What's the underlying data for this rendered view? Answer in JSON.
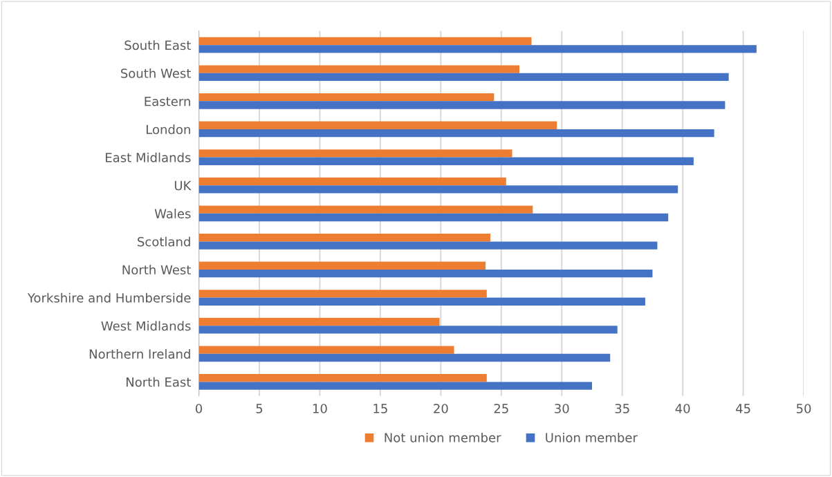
{
  "chart_data": {
    "type": "bar",
    "orientation": "horizontal",
    "categories": [
      "South East",
      "South West",
      "Eastern",
      "London",
      "East Midlands",
      "UK",
      "Wales",
      "Scotland",
      "North West",
      "Yorkshire and Humberside",
      "West Midlands",
      "Northern Ireland",
      "North East"
    ],
    "series": [
      {
        "name": "Not union member",
        "color": "#ed7d31",
        "values": [
          27.5,
          26.5,
          24.4,
          29.6,
          25.9,
          25.4,
          27.6,
          24.1,
          23.7,
          23.8,
          19.9,
          21.1,
          23.8
        ]
      },
      {
        "name": "Union member",
        "color": "#4472c4",
        "values": [
          46.1,
          43.8,
          43.5,
          42.6,
          40.9,
          39.6,
          38.8,
          37.9,
          37.5,
          36.9,
          34.6,
          34.0,
          32.5
        ]
      }
    ],
    "xlim": [
      0,
      50
    ],
    "xticks": [
      0,
      5,
      10,
      15,
      20,
      25,
      30,
      35,
      40,
      45,
      50
    ],
    "grid": "x",
    "legend": "bottom"
  }
}
